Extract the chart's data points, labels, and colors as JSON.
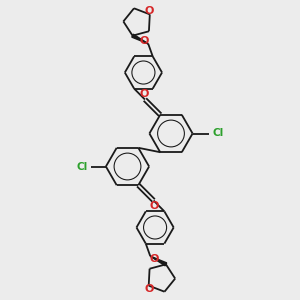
{
  "bg_color": "#ececec",
  "bond_color": "#1a1a1a",
  "bond_width": 1.3,
  "cl_color": "#2ca02c",
  "o_color": "#d62728",
  "figsize": [
    3.0,
    3.0
  ],
  "dpi": 100,
  "xlim": [
    0,
    10
  ],
  "ylim": [
    0,
    10
  ],
  "R_benz": 0.72,
  "R_small": 0.62,
  "R_thf": 0.48
}
